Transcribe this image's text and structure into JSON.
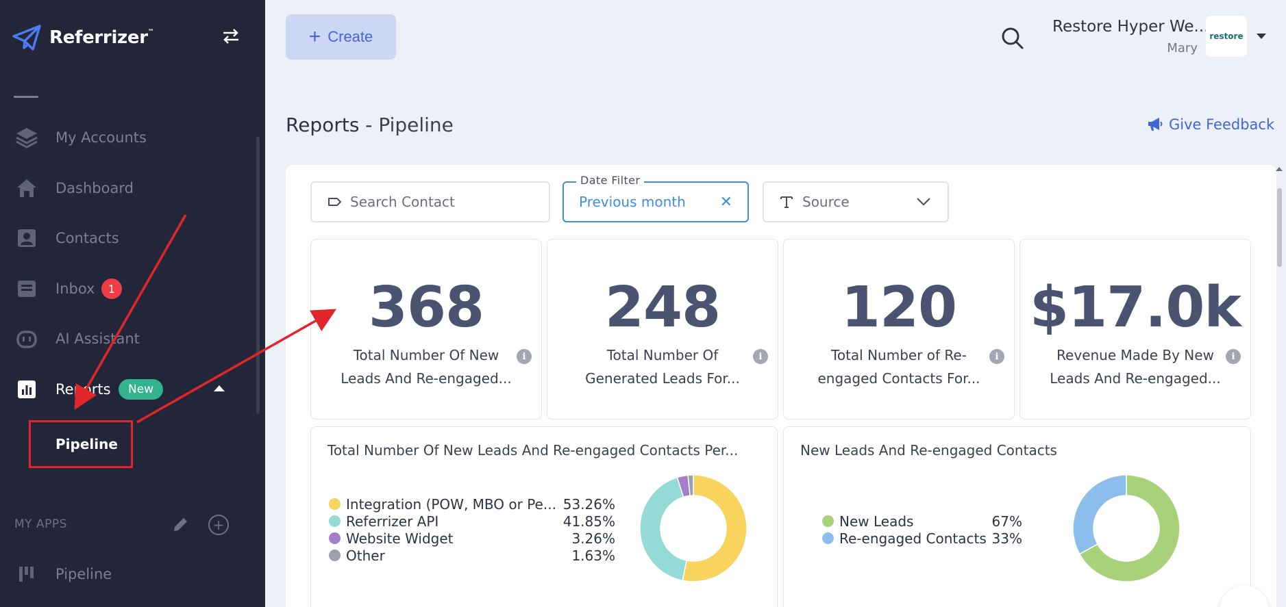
{
  "brand": {
    "name": "Referrizer",
    "tm": "™"
  },
  "sidebar": {
    "items": [
      {
        "label": "My Accounts",
        "icon": "layers-icon"
      },
      {
        "label": "Dashboard",
        "icon": "home-icon"
      },
      {
        "label": "Contacts",
        "icon": "contact-card-icon"
      },
      {
        "label": "Inbox",
        "icon": "inbox-icon",
        "badge": "1"
      },
      {
        "label": "AI Assistant",
        "icon": "robot-icon"
      },
      {
        "label": "Reports",
        "icon": "bar-chart-icon",
        "badge": "New"
      }
    ],
    "sub_item": "Pipeline",
    "apps_heading": "MY APPS",
    "apps": [
      {
        "label": "Pipeline",
        "icon": "kanban-icon"
      }
    ]
  },
  "header": {
    "create_label": "Create",
    "account_name": "Restore Hyper We...",
    "account_user": "Mary",
    "account_logo_text": "restore"
  },
  "page": {
    "title": "Reports",
    "separator": " - ",
    "subtitle": "Pipeline",
    "feedback_label": "Give Feedback"
  },
  "filters": {
    "search_placeholder": "Search Contact",
    "date_label": "Date Filter",
    "date_value": "Previous month",
    "source_label": "Source"
  },
  "stats": [
    {
      "value": "368",
      "label": "Total Number Of New Leads And Re-engaged..."
    },
    {
      "value": "248",
      "label": "Total Number Of Generated Leads For..."
    },
    {
      "value": "120",
      "label": "Total Number of Re-engaged Contacts For..."
    },
    {
      "value": "$17.0k",
      "label": "Revenue Made By New Leads And Re-engaged..."
    }
  ],
  "chart_data": [
    {
      "type": "pie",
      "title": "Total Number Of New Leads And Re-engaged Contacts Per...",
      "categories": [
        "Integration (POW, MBO or Pe...",
        "Referrizer API",
        "Website Widget",
        "Other"
      ],
      "values": [
        53.26,
        41.85,
        3.26,
        1.63
      ],
      "labels": [
        "53.26%",
        "41.85%",
        "3.26%",
        "1.63%"
      ],
      "colors": [
        "#f8d35e",
        "#94dad6",
        "#a57ec7",
        "#9aa0ae"
      ],
      "legend": "left"
    },
    {
      "type": "pie",
      "title": "New Leads And Re-engaged Contacts",
      "categories": [
        "New Leads",
        "Re-engaged Contacts"
      ],
      "values": [
        67,
        33
      ],
      "labels": [
        "67%",
        "33%"
      ],
      "colors": [
        "#a8d27a",
        "#8dbdea"
      ],
      "legend": "left"
    }
  ],
  "colors": {
    "sidebar_bg": "#222638",
    "accent": "#3d67d6",
    "highlight": "#e0262a",
    "badge_red": "#ef3d48",
    "badge_green": "#32b38e"
  }
}
